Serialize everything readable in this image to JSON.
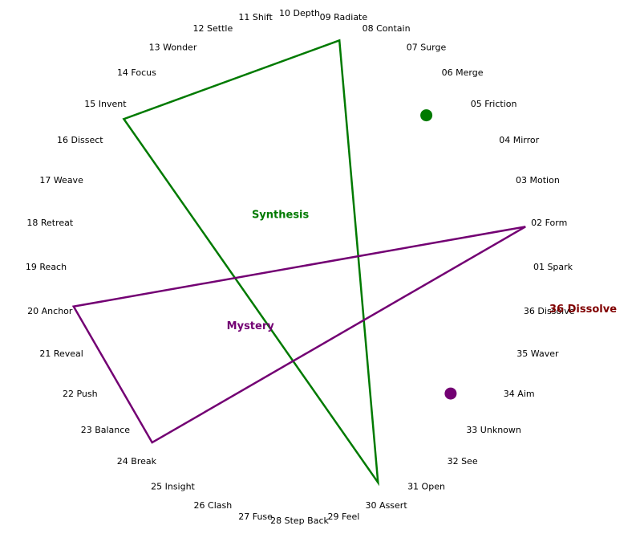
{
  "wheel_labels": [
    "01 Spark",
    "02 Form",
    "03 Motion",
    "04 Mirror",
    "05 Friction",
    "06 Merge",
    "07 Surge",
    "08 Contain",
    "09 Radiate",
    "10 Depth",
    "11 Shift",
    "12 Settle",
    "13 Wonder",
    "14 Focus",
    "15 Invent",
    "16 Dissect",
    "17 Weave",
    "18 Retreat",
    "19 Reach",
    "20 Anchor",
    "21 Reveal",
    "22 Push",
    "23 Balance",
    "24 Break",
    "25 Insight",
    "26 Clash",
    "27 Fuse",
    "28 Step Back",
    "29 Feel",
    "30 Assert",
    "31 Open",
    "32 See",
    "33 Unknown",
    "34 Aim",
    "35 Waver",
    "36 Dissolve"
  ],
  "triangles": [
    {
      "name": "Synthesis",
      "color": "#007a00",
      "vertices": [
        "09 Radiate",
        "15 Invent",
        "30 Assert"
      ]
    },
    {
      "name": "Mystery",
      "color": "#730073",
      "vertices": [
        "02 Form",
        "20 Anchor",
        "24 Break"
      ]
    }
  ],
  "markers": [
    {
      "label": "06 Merge",
      "color": "#007a00"
    },
    {
      "label": "33 Unknown",
      "color": "#730073"
    }
  ],
  "highlight": {
    "text": "36 Dissolve",
    "color": "#800000"
  }
}
